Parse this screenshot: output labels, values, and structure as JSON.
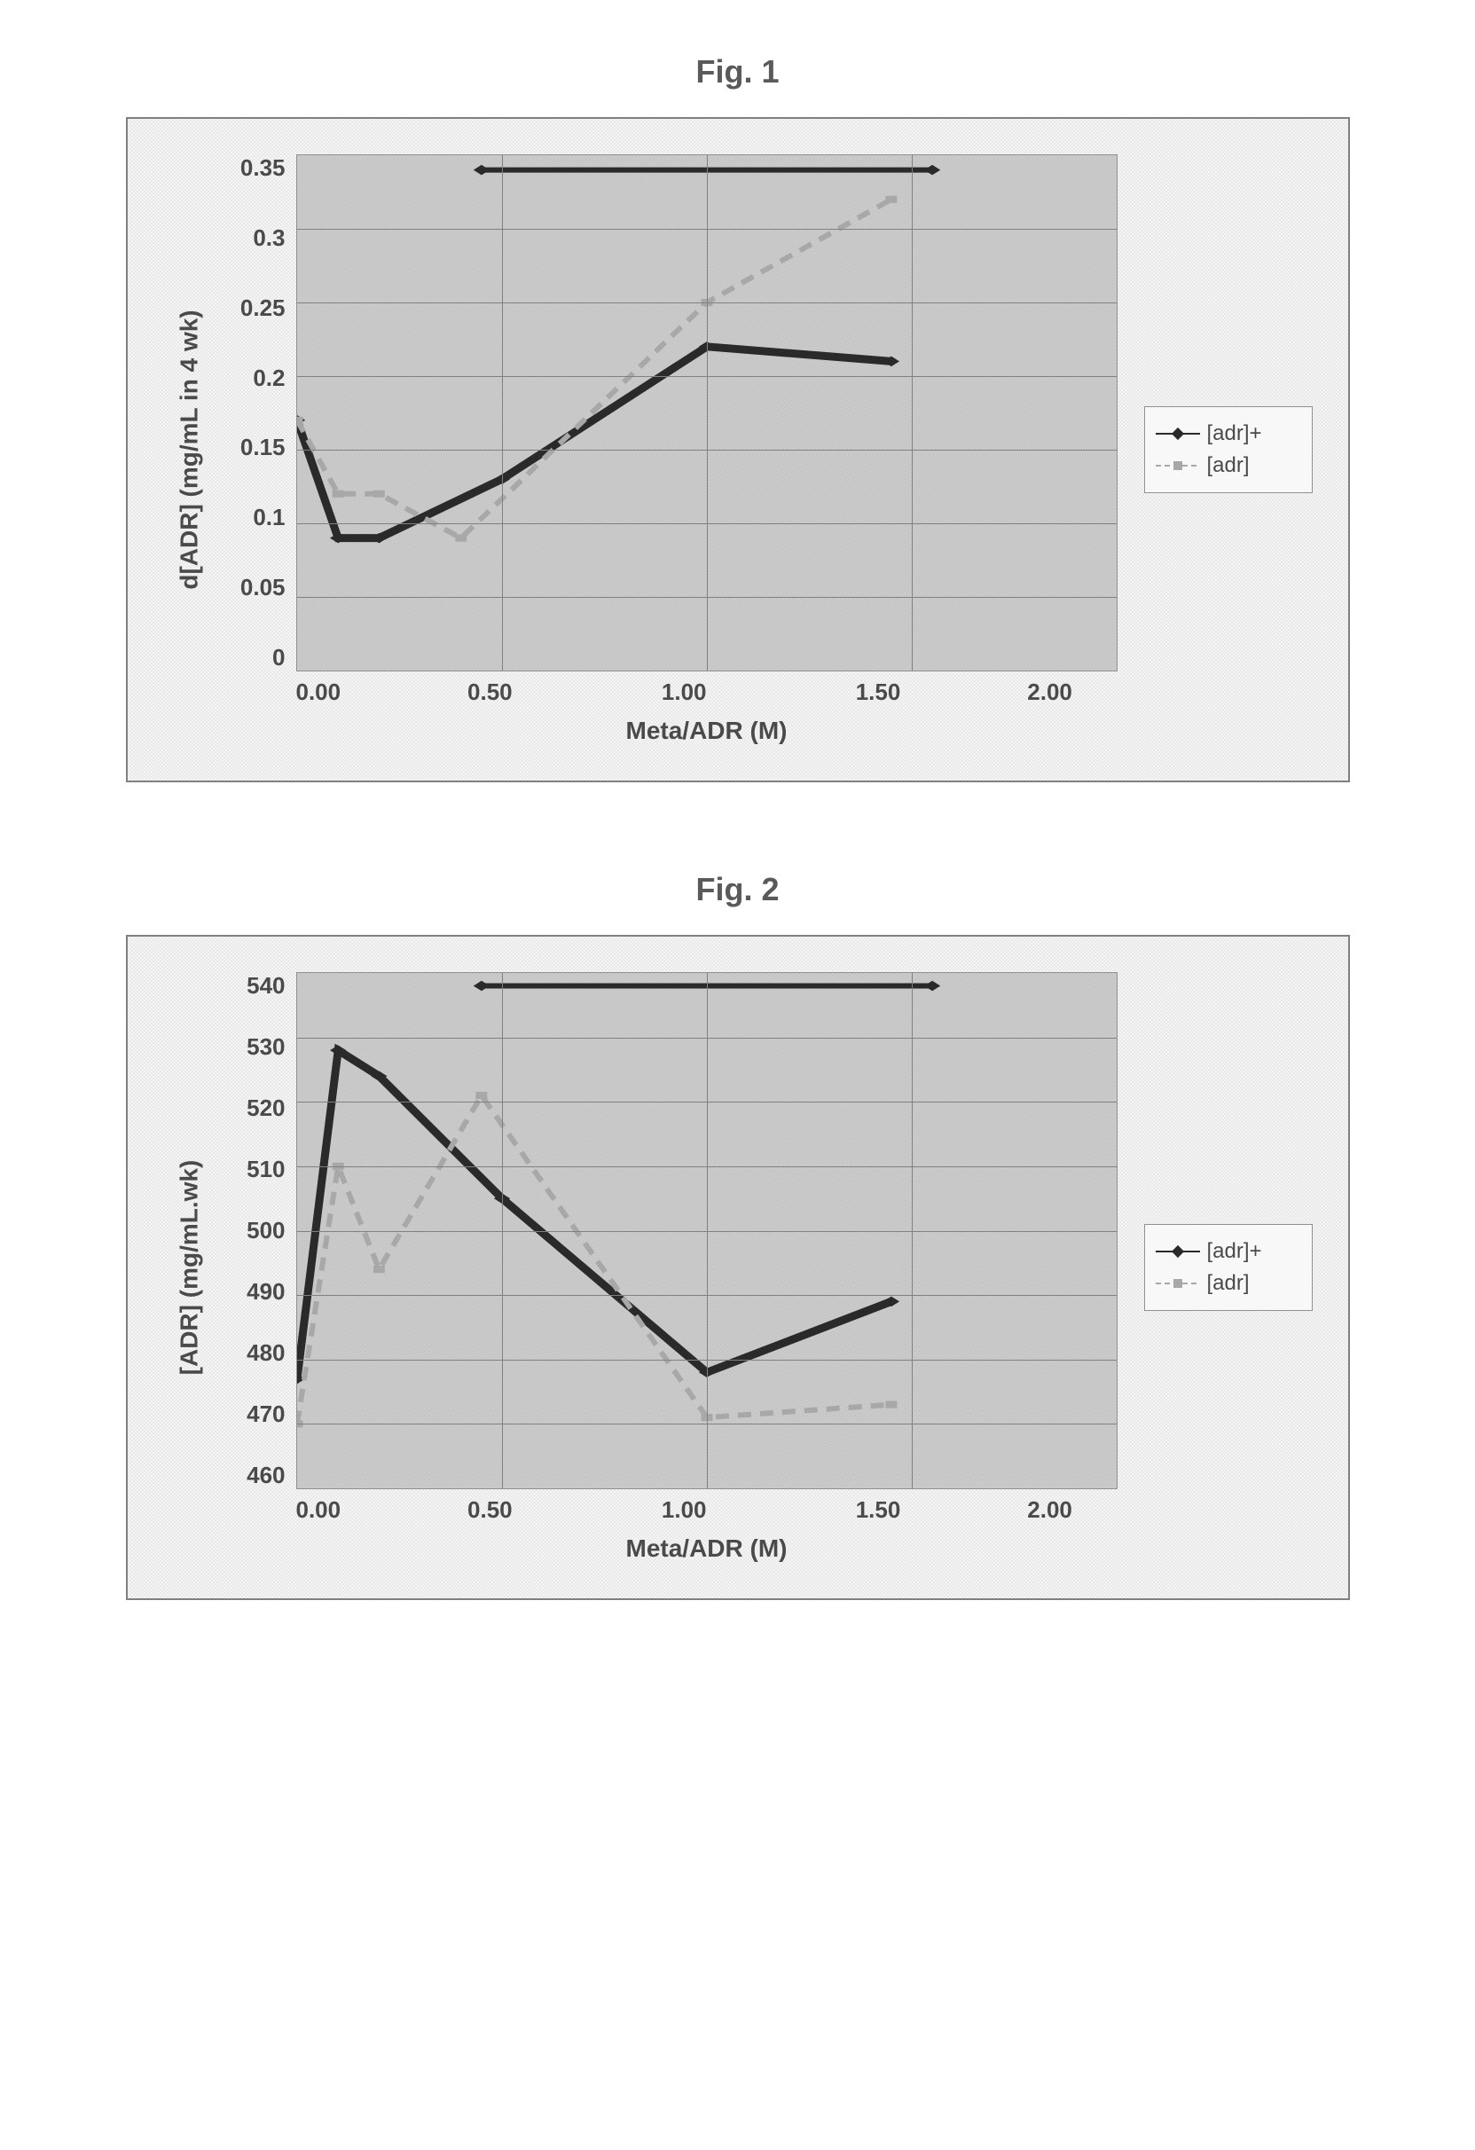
{
  "figure1": {
    "title": "Fig. 1",
    "type": "line",
    "xlabel": "Meta/ADR (M)",
    "ylabel": "d[ADR] (mg/mL in 4 wk)",
    "xlim": [
      0,
      2.0
    ],
    "ylim": [
      0,
      0.35
    ],
    "xtick_step": 0.5,
    "xtick_labels": [
      "0.00",
      "0.50",
      "1.00",
      "1.50",
      "2.00"
    ],
    "ytick_step": 0.05,
    "ytick_labels": [
      "0.35",
      "0.3",
      "0.25",
      "0.2",
      "0.15",
      "0.1",
      "0.05",
      "0"
    ],
    "label_fontsize": 28,
    "tick_fontsize": 26,
    "background_color": "#f0f0f0",
    "plot_background": "#c8c8c8",
    "grid_color": "#808080",
    "series": [
      {
        "name": "[adr]+",
        "color": "#2a2a2a",
        "line_style": "solid",
        "marker": "diamond",
        "marker_color": "#2a2a2a",
        "line_width": 3,
        "x": [
          0.0,
          0.1,
          0.2,
          0.5,
          1.0,
          1.45
        ],
        "y": [
          0.17,
          0.09,
          0.09,
          0.13,
          0.22,
          0.21
        ]
      },
      {
        "name": "[adr]",
        "color": "#a8a8a8",
        "line_style": "dashed",
        "marker": "square",
        "marker_color": "#a8a8a8",
        "line_width": 2,
        "x": [
          0.0,
          0.1,
          0.2,
          0.4,
          1.0,
          1.45
        ],
        "y": [
          0.17,
          0.12,
          0.12,
          0.09,
          0.25,
          0.32
        ]
      }
    ],
    "topbar": {
      "x": [
        0.45,
        1.55
      ],
      "y": 0.34,
      "color": "#2a2a2a"
    }
  },
  "figure2": {
    "title": "Fig. 2",
    "type": "line",
    "xlabel": "Meta/ADR (M)",
    "ylabel": "[ADR] (mg/mL.wk)",
    "xlim": [
      0,
      2.0
    ],
    "ylim": [
      460,
      540
    ],
    "xtick_step": 0.5,
    "xtick_labels": [
      "0.00",
      "0.50",
      "1.00",
      "1.50",
      "2.00"
    ],
    "ytick_step": 10,
    "ytick_labels": [
      "540",
      "530",
      "520",
      "510",
      "500",
      "490",
      "480",
      "470",
      "460"
    ],
    "label_fontsize": 28,
    "tick_fontsize": 26,
    "background_color": "#f0f0f0",
    "plot_background": "#c8c8c8",
    "grid_color": "#808080",
    "series": [
      {
        "name": "[adr]+",
        "color": "#2a2a2a",
        "line_style": "solid",
        "marker": "diamond",
        "marker_color": "#2a2a2a",
        "line_width": 3,
        "x": [
          0.0,
          0.1,
          0.2,
          0.5,
          1.0,
          1.45
        ],
        "y": [
          477,
          528,
          524,
          505,
          478,
          489
        ]
      },
      {
        "name": "[adr]",
        "color": "#a8a8a8",
        "line_style": "dashed",
        "marker": "square",
        "marker_color": "#a8a8a8",
        "line_width": 2,
        "x": [
          0.0,
          0.1,
          0.2,
          0.45,
          1.0,
          1.45
        ],
        "y": [
          470,
          510,
          494,
          521,
          471,
          473
        ]
      }
    ],
    "topbar": {
      "x": [
        0.45,
        1.55
      ],
      "y": 538,
      "color": "#2a2a2a"
    }
  },
  "legend_labels": {
    "series1": "[adr]+",
    "series2": "[adr]"
  }
}
